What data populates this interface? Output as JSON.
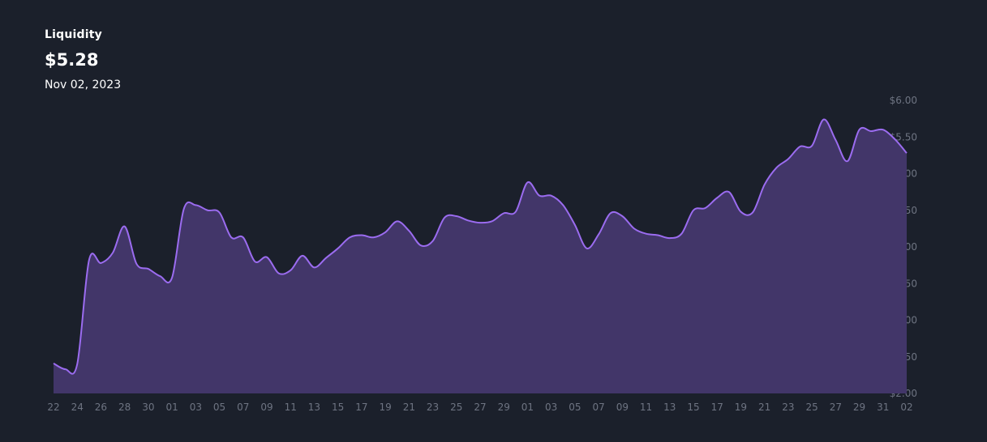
{
  "header": {
    "label": "Liquidity",
    "value": "$5.28",
    "date": "Nov 02, 2023"
  },
  "colors": {
    "background": "#1b202b",
    "line": "#9b6cf0",
    "area": "#423669",
    "tick_text": "#6e7482"
  },
  "chart_data": {
    "type": "area",
    "title": "Liquidity",
    "xlabel": "",
    "ylabel": "",
    "ylim": [
      2.0,
      6.0
    ],
    "yticks": [
      2.0,
      2.5,
      3.0,
      3.5,
      4.0,
      4.5,
      5.0,
      5.5,
      6.0
    ],
    "ytick_labels": [
      "$2.00",
      "$2.50",
      "$3.00",
      "$3.50",
      "$4.00",
      "$4.50",
      "$5.00",
      "$5.50",
      "$6.00"
    ],
    "y_axis_position": "right",
    "grid": false,
    "legend": "none",
    "xtick_labels": [
      "22",
      "24",
      "26",
      "28",
      "30",
      "01",
      "03",
      "05",
      "07",
      "09",
      "11",
      "13",
      "15",
      "17",
      "19",
      "21",
      "23",
      "25",
      "27",
      "29",
      "01",
      "03",
      "05",
      "07",
      "09",
      "11",
      "13",
      "15",
      "17",
      "19",
      "21",
      "23",
      "25",
      "27",
      "29",
      "31",
      "02"
    ],
    "x_range": "Aug 22, 2023 – Nov 02, 2023",
    "x_start_day": 0,
    "x_end_day": 72,
    "series": [
      {
        "values": [
          2.41,
          2.33,
          2.4,
          3.82,
          3.78,
          3.92,
          4.28,
          3.77,
          3.7,
          3.6,
          3.58,
          4.52,
          4.57,
          4.5,
          4.47,
          4.13,
          4.13,
          3.8,
          3.86,
          3.64,
          3.68,
          3.88,
          3.72,
          3.85,
          3.98,
          4.13,
          4.16,
          4.13,
          4.2,
          4.35,
          4.22,
          4.02,
          4.08,
          4.4,
          4.42,
          4.36,
          4.33,
          4.35,
          4.46,
          4.48,
          4.88,
          4.7,
          4.7,
          4.57,
          4.3,
          3.98,
          4.17,
          4.46,
          4.42,
          4.25,
          4.18,
          4.16,
          4.12,
          4.18,
          4.5,
          4.53,
          4.67,
          4.75,
          4.48,
          4.47,
          4.85,
          5.08,
          5.2,
          5.37,
          5.38,
          5.74,
          5.46,
          5.17,
          5.6,
          5.58,
          5.6,
          5.47,
          5.28
        ]
      }
    ]
  }
}
